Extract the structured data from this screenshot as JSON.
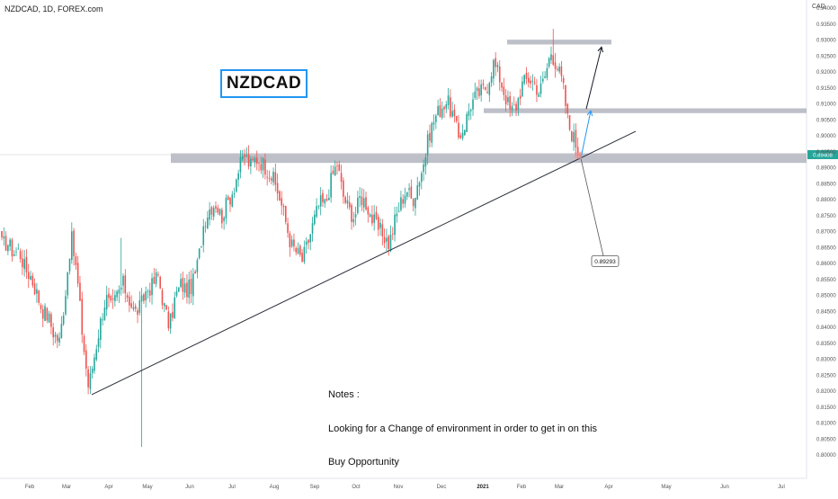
{
  "chart": {
    "symbol_line": "NZDCAD, 1D, FOREX.com",
    "currency": "CAD",
    "box_label": "NZDCAD",
    "price_tag": "0.89408",
    "callout": "0.89293",
    "notes": [
      "Notes :",
      "Looking for a Change of environment in order to get in on this",
      "Buy Opportunity"
    ]
  },
  "chart_data": {
    "type": "candlestick",
    "y_ticks": [
      "0.94000",
      "0.93500",
      "0.93000",
      "0.92500",
      "0.92000",
      "0.91500",
      "0.91000",
      "0.90500",
      "0.90000",
      "0.89500",
      "0.89000",
      "0.88500",
      "0.88000",
      "0.87500",
      "0.87000",
      "0.86500",
      "0.86000",
      "0.85500",
      "0.85000",
      "0.84500",
      "0.84000",
      "0.83500",
      "0.83000",
      "0.82500",
      "0.82000",
      "0.81500",
      "0.81000",
      "0.80500",
      "0.80000"
    ],
    "ylim": [
      0.7995,
      0.9412
    ],
    "x_ticks": [
      "Feb",
      "Mar",
      "Apr",
      "May",
      "Jun",
      "Jul",
      "Aug",
      "Sep",
      "Oct",
      "Nov",
      "Dec",
      "2021",
      "Feb",
      "Mar",
      "Apr",
      "May",
      "Jun",
      "Jul"
    ],
    "close_anchors": [
      [
        0.866,
        0.866
      ],
      [
        0.867,
        0.866
      ],
      [
        0.863,
        0.864
      ],
      [
        0.862,
        0.866
      ],
      [
        0.857,
        0.86
      ],
      [
        0.855,
        0.857
      ],
      [
        0.85,
        0.852
      ],
      [
        0.845,
        0.846
      ],
      [
        0.842,
        0.845
      ],
      [
        0.837,
        0.839
      ],
      [
        0.835,
        0.836
      ],
      [
        0.85,
        0.852
      ],
      [
        0.868,
        0.869
      ],
      [
        0.855,
        0.858
      ],
      [
        0.835,
        0.838
      ],
      [
        0.82,
        0.822
      ],
      [
        0.83,
        0.832
      ],
      [
        0.84,
        0.842
      ],
      [
        0.848,
        0.851
      ],
      [
        0.845,
        0.846
      ],
      [
        0.85,
        0.851
      ],
      [
        0.852,
        0.855
      ],
      [
        0.848,
        0.85
      ],
      [
        0.843,
        0.846
      ],
      [
        0.845,
        0.848
      ],
      [
        0.85,
        0.853
      ],
      [
        0.852,
        0.854
      ],
      [
        0.855,
        0.858
      ],
      [
        0.846,
        0.848
      ],
      [
        0.838,
        0.842
      ],
      [
        0.848,
        0.851
      ],
      [
        0.852,
        0.855
      ],
      [
        0.85,
        0.853
      ],
      [
        0.852,
        0.855
      ],
      [
        0.86,
        0.862
      ],
      [
        0.872,
        0.875
      ],
      [
        0.876,
        0.879
      ],
      [
        0.878,
        0.88
      ],
      [
        0.873,
        0.876
      ],
      [
        0.878,
        0.88
      ],
      [
        0.882,
        0.884
      ],
      [
        0.888,
        0.891
      ],
      [
        0.893,
        0.895
      ],
      [
        0.89,
        0.891
      ],
      [
        0.892,
        0.894
      ],
      [
        0.89,
        0.893
      ],
      [
        0.888,
        0.891
      ],
      [
        0.885,
        0.887
      ],
      [
        0.88,
        0.882
      ],
      [
        0.873,
        0.875
      ],
      [
        0.865,
        0.867
      ],
      [
        0.862,
        0.865
      ],
      [
        0.86,
        0.862
      ],
      [
        0.866,
        0.868
      ],
      [
        0.872,
        0.875
      ],
      [
        0.878,
        0.88
      ],
      [
        0.877,
        0.88
      ],
      [
        0.885,
        0.888
      ],
      [
        0.89,
        0.893
      ],
      [
        0.88,
        0.883
      ],
      [
        0.876,
        0.878
      ],
      [
        0.873,
        0.876
      ],
      [
        0.88,
        0.882
      ],
      [
        0.878,
        0.88
      ],
      [
        0.873,
        0.875
      ],
      [
        0.87,
        0.872
      ],
      [
        0.868,
        0.87
      ],
      [
        0.865,
        0.867
      ],
      [
        0.872,
        0.875
      ],
      [
        0.878,
        0.88
      ],
      [
        0.882,
        0.885
      ],
      [
        0.879,
        0.88
      ],
      [
        0.884,
        0.887
      ],
      [
        0.89,
        0.893
      ],
      [
        0.9,
        0.902
      ],
      [
        0.905,
        0.907
      ],
      [
        0.908,
        0.91
      ],
      [
        0.91,
        0.912
      ],
      [
        0.905,
        0.908
      ],
      [
        0.898,
        0.901
      ],
      [
        0.902,
        0.904
      ],
      [
        0.908,
        0.911
      ],
      [
        0.912,
        0.913
      ],
      [
        0.913,
        0.915
      ],
      [
        0.915,
        0.917
      ],
      [
        0.922,
        0.924
      ],
      [
        0.918,
        0.92
      ],
      [
        0.912,
        0.914
      ],
      [
        0.906,
        0.909
      ],
      [
        0.908,
        0.911
      ],
      [
        0.915,
        0.917
      ],
      [
        0.917,
        0.919
      ],
      [
        0.916,
        0.918
      ],
      [
        0.912,
        0.915
      ],
      [
        0.918,
        0.92
      ],
      [
        0.925,
        0.928
      ],
      [
        0.921,
        0.923
      ],
      [
        0.915,
        0.918
      ],
      [
        0.902,
        0.905
      ],
      [
        0.898,
        0.9
      ],
      [
        0.8929,
        0.8941
      ]
    ],
    "anchor_domain_note": "",
    "x_start_day": 0
  }
}
